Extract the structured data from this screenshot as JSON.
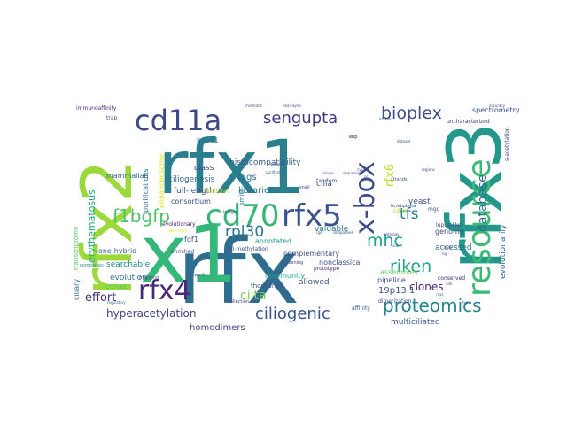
{
  "words": [
    {
      "text": "rfx1",
      "color": "#2a7f8e"
    },
    {
      "text": "rfx",
      "color": "#2f6d8e"
    },
    {
      "text": "x1",
      "color": "#35b779"
    },
    {
      "text": "rfx2",
      "color": "#9bd93c"
    },
    {
      "text": "rfx3",
      "color": "#23988a"
    },
    {
      "text": "cd70",
      "color": "#36b577"
    },
    {
      "text": "rfx5",
      "color": "#3b528b"
    },
    {
      "text": "resource",
      "color": "#3aba76"
    },
    {
      "text": "cd11a",
      "color": "#3e4989"
    },
    {
      "text": "f1bgfp",
      "color": "#4fc16b"
    },
    {
      "text": "rfx4",
      "color": "#482878"
    },
    {
      "text": "x-box",
      "color": "#3f4a8a"
    },
    {
      "text": "sengupta",
      "color": "#443a83"
    },
    {
      "text": "proteomics",
      "color": "#25858e"
    },
    {
      "text": "bioplex",
      "color": "#3e4c8a"
    },
    {
      "text": "ciliogenic",
      "color": "#3b528b"
    },
    {
      "text": "riken",
      "color": "#20a386"
    },
    {
      "text": "mhc",
      "color": "#1f9e89"
    },
    {
      "text": "rpl30",
      "color": "#2a788e"
    },
    {
      "text": "tfs",
      "color": "#26828e"
    },
    {
      "text": "database",
      "color": "#2d708e"
    },
    {
      "text": "rfx6",
      "color": "#bddf26"
    },
    {
      "text": "hyperacetylation",
      "color": "#414487"
    },
    {
      "text": "effort",
      "color": "#472d7b"
    },
    {
      "text": "ciita",
      "color": "#7ad151"
    },
    {
      "text": "clones",
      "color": "#482173"
    },
    {
      "text": "evolutionarily",
      "color": "#31688e"
    },
    {
      "text": "19p13.1",
      "color": "#3b528b"
    },
    {
      "text": "homodimers",
      "color": "#3e4a89"
    },
    {
      "text": "multiciliated",
      "color": "#355f8d"
    },
    {
      "text": "histocompatibility",
      "color": "#355e8d"
    },
    {
      "text": "tags",
      "color": "#2c728e"
    },
    {
      "text": "libraries",
      "color": "#2e6e8e"
    },
    {
      "text": "ciliogenesis",
      "color": "#33638d"
    },
    {
      "text": "cilia",
      "color": "#404588"
    },
    {
      "text": "full-length",
      "color": "#3b528b"
    },
    {
      "text": "consortium",
      "color": "#3d4e8a"
    },
    {
      "text": "class",
      "color": "#3f4788"
    },
    {
      "text": "purifications",
      "color": "#2e6f8e"
    },
    {
      "text": "enhanceosome",
      "color": "#d8e219"
    },
    {
      "text": "mammalian",
      "color": "#31678e"
    },
    {
      "text": "hdac1",
      "color": "#2b758e"
    },
    {
      "text": "erythematosus",
      "color": "#22a785"
    },
    {
      "text": "searchable",
      "color": "#24868e"
    },
    {
      "text": "evolution",
      "color": "#2a768e"
    },
    {
      "text": "cdnas",
      "color": "#52c569"
    },
    {
      "text": "one-hybrid",
      "color": "#33638d"
    },
    {
      "text": "fgf1",
      "color": "#3a538b"
    },
    {
      "text": "annotated",
      "color": "#1f968b"
    },
    {
      "text": "valuable",
      "color": "#2a778e"
    },
    {
      "text": "complementary",
      "color": "#3f4889"
    },
    {
      "text": "nonclassical",
      "color": "#3c508b"
    },
    {
      "text": "community",
      "color": "#22a884"
    },
    {
      "text": "allowed",
      "color": "#3b518b"
    },
    {
      "text": "assembles",
      "color": "#63cb5f"
    },
    {
      "text": "pipeline",
      "color": "#3d4d8a"
    },
    {
      "text": "accessed",
      "color": "#2c738e"
    },
    {
      "text": "genome",
      "color": "#3f4889"
    },
    {
      "text": "spectrometry",
      "color": "#3e4989"
    },
    {
      "text": "uncharacterized",
      "color": "#46327e"
    },
    {
      "text": "yeast",
      "color": "#3b528b"
    },
    {
      "text": "ciliary",
      "color": "#2f6c8e"
    },
    {
      "text": "transcriptome",
      "color": "#56c667"
    },
    {
      "text": "immunoaffinity",
      "color": "#472f7d"
    },
    {
      "text": "trap",
      "color": "#3e4c8a"
    },
    {
      "text": "evolutionary",
      "color": "#481b6d"
    },
    {
      "text": "insight",
      "color": "#404688"
    },
    {
      "text": "smith",
      "color": "#2a788e"
    },
    {
      "text": "thousands",
      "color": "#3b528b"
    },
    {
      "text": "conserved",
      "color": "#482475"
    },
    {
      "text": "mgc",
      "color": "#3e4a89"
    },
    {
      "text": "lupus-like",
      "color": "#3e4a89"
    },
    {
      "text": "tri-methylation",
      "color": "#3e4c8a"
    },
    {
      "text": "enriched",
      "color": "#3f4788"
    },
    {
      "text": "institutes",
      "color": "#b5de2b"
    },
    {
      "text": "collection",
      "color": "#404588"
    },
    {
      "text": "prototype",
      "color": "#481f70"
    },
    {
      "text": "affinity",
      "color": "#365c8d"
    },
    {
      "text": "dimerization",
      "color": "#3e4c8a"
    },
    {
      "text": "mapping",
      "color": "#3d4e8a"
    },
    {
      "text": "complexes",
      "color": "#21918c"
    },
    {
      "text": "network",
      "color": "#3b528b"
    },
    {
      "text": "regulatory",
      "color": "#2d708e"
    },
    {
      "text": "snail",
      "color": "#423f85"
    },
    {
      "text": "screening",
      "color": "#3e4a89"
    },
    {
      "text": "cdna",
      "color": "#bddf26"
    },
    {
      "text": "tandem",
      "color": "#3d4e8a"
    },
    {
      "text": "s-acetylation",
      "color": "#3b528b"
    },
    {
      "text": "hc/ebpbeta",
      "color": "#3e4a89"
    },
    {
      "text": "genomic",
      "color": "#3e4c8a"
    },
    {
      "text": "sequences",
      "color": "#3b528b"
    },
    {
      "text": "purification",
      "color": "#2e6f8e"
    },
    {
      "text": "ebp",
      "color": "#440154"
    },
    {
      "text": "cyc1",
      "color": "#3b528b"
    },
    {
      "text": "nc",
      "color": "#414487"
    },
    {
      "text": "regions",
      "color": "#3e4a89"
    },
    {
      "text": "strands",
      "color": "#3d4e8a"
    },
    {
      "text": "unique",
      "color": "#3f4788"
    },
    {
      "text": "ontology",
      "color": "#414487"
    },
    {
      "text": "rgs",
      "color": "#3b528b"
    },
    {
      "text": "ciliopathies",
      "color": "#3e4a89"
    },
    {
      "text": "sub",
      "color": "#2c728e"
    },
    {
      "text": "aim",
      "color": "#482878"
    },
    {
      "text": "rnas",
      "color": "#2a788e"
    },
    {
      "text": "hgnc",
      "color": "#3b528b"
    },
    {
      "text": "bulb",
      "color": "#3e4a89"
    },
    {
      "text": "ng",
      "color": "#414487"
    },
    {
      "text": "repressors",
      "color": "#d8e219"
    },
    {
      "text": "kinase",
      "color": "#3b528b"
    },
    {
      "text": "dataset",
      "color": "#3e4a89"
    },
    {
      "text": "accuracy",
      "color": "#3e4c8a"
    },
    {
      "text": "rearrayed",
      "color": "#3b528b"
    },
    {
      "text": "chromatin",
      "color": "#3e4a89"
    }
  ]
}
